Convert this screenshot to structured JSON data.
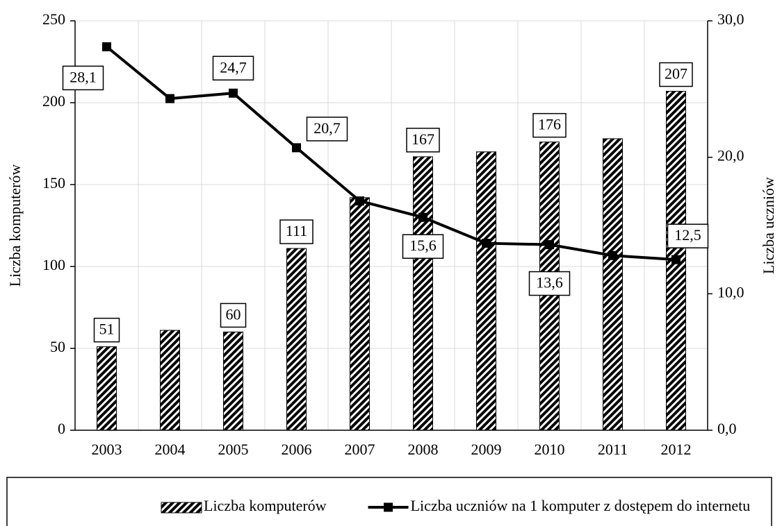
{
  "chart_data": {
    "type": "bar-line",
    "categories": [
      "2003",
      "2004",
      "2005",
      "2006",
      "2007",
      "2008",
      "2009",
      "2010",
      "2011",
      "2012"
    ],
    "y_label": "Liczba komputerów",
    "y2_label": "Liczba uczniów",
    "ylim": [
      0,
      250
    ],
    "yticks": [
      0,
      50,
      100,
      150,
      200,
      250
    ],
    "y2lim": [
      0,
      30
    ],
    "y2ticks": [
      {
        "value": 0,
        "label": "0,0"
      },
      {
        "value": 10,
        "label": "10,0"
      },
      {
        "value": 20,
        "label": "20,0"
      },
      {
        "value": 30,
        "label": "30,0"
      }
    ],
    "grid": true,
    "legend": "bottom",
    "series": [
      {
        "name": "Liczba komputerów",
        "type": "bar",
        "color": "#000000",
        "values": [
          51,
          61,
          60,
          111,
          142,
          167,
          170,
          176,
          178,
          207
        ],
        "value_labels": [
          "51",
          null,
          "60",
          "111",
          null,
          "167",
          null,
          "176",
          null,
          "207"
        ]
      },
      {
        "name": "Liczba uczniów na 1 komputer z dostępem do internetu",
        "type": "line",
        "axis": "y2",
        "color": "#000000",
        "values": [
          28.1,
          24.3,
          24.7,
          20.7,
          16.8,
          15.6,
          13.7,
          13.6,
          12.8,
          12.5
        ],
        "value_labels": [
          "28,1",
          null,
          "24,7",
          "20,7",
          null,
          "15,6",
          null,
          "13,6",
          null,
          "12,5"
        ]
      }
    ]
  }
}
